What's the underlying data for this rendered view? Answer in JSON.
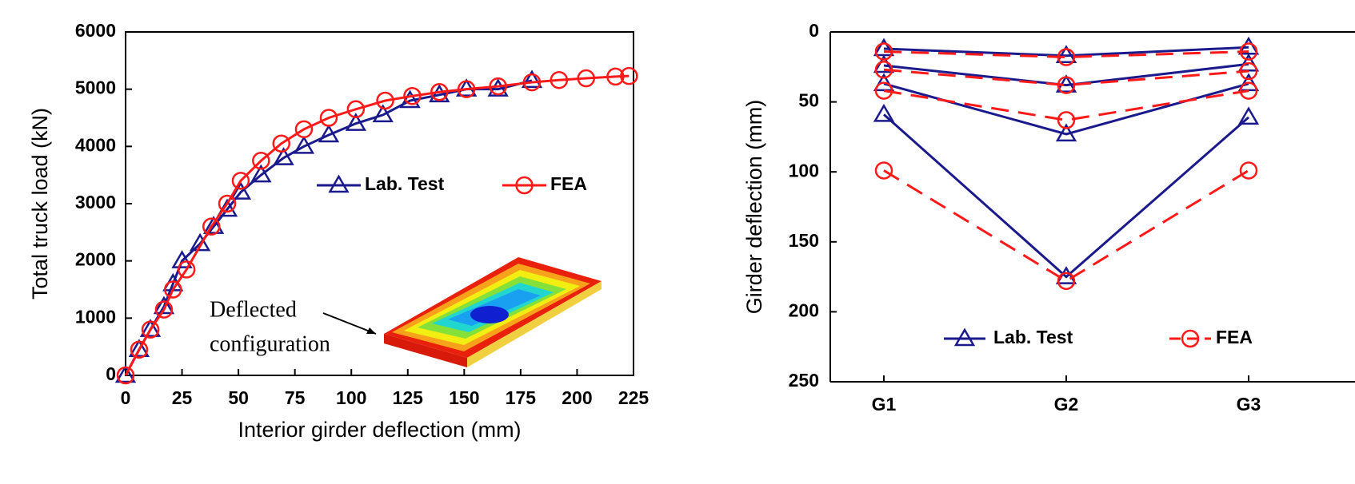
{
  "chart_data": [
    {
      "type": "line",
      "xlabel": "Interior girder deflection (mm)",
      "ylabel": "Total truck load (kN)",
      "xlim": [
        0,
        225
      ],
      "xticks": [
        0,
        25,
        50,
        75,
        100,
        125,
        150,
        175,
        200,
        225
      ],
      "ylim": [
        0,
        6000
      ],
      "yticks": [
        0,
        1000,
        2000,
        3000,
        4000,
        5000,
        6000
      ],
      "annotation": [
        "Deflected",
        "configuration"
      ],
      "series": [
        {
          "name": "Lab. Test",
          "color": "#1a1a8c",
          "marker": "triangle",
          "dashed": false,
          "x": [
            0,
            6,
            11,
            17,
            21,
            25,
            33,
            39,
            45,
            51,
            60,
            70,
            79,
            90,
            102,
            114,
            126,
            139,
            151,
            165,
            180
          ],
          "y": [
            0,
            450,
            800,
            1200,
            1600,
            2000,
            2300,
            2600,
            2900,
            3200,
            3500,
            3800,
            4000,
            4200,
            4400,
            4550,
            4800,
            4900,
            5000,
            5000,
            5150
          ]
        },
        {
          "name": "FEA",
          "color": "#ff1a1a",
          "marker": "circle",
          "dashed": false,
          "x": [
            0,
            6,
            11,
            17,
            21,
            27,
            38,
            45,
            51,
            60,
            69,
            79,
            90,
            102,
            115,
            127,
            139,
            151,
            165,
            180,
            192,
            204,
            217,
            223
          ],
          "y": [
            0,
            450,
            800,
            1150,
            1500,
            1850,
            2600,
            3000,
            3400,
            3750,
            4050,
            4300,
            4500,
            4650,
            4800,
            4880,
            4950,
            5000,
            5050,
            5120,
            5160,
            5190,
            5220,
            5230
          ]
        }
      ]
    },
    {
      "type": "line",
      "ylabel": "Girder deflection (mm)",
      "categories": [
        "G1",
        "G2",
        "G3"
      ],
      "ylim": [
        0,
        250
      ],
      "y_inverted": true,
      "yticks": [
        0,
        50,
        100,
        150,
        200,
        250
      ],
      "series": [
        {
          "name": "Lab. Test",
          "color": "#1a1a8c",
          "marker": "triangle",
          "dashed": false,
          "lines": [
            [
              12,
              17,
              11
            ],
            [
              24,
              38,
              23
            ],
            [
              37,
              73,
              37
            ],
            [
              59,
              175,
              61
            ]
          ]
        },
        {
          "name": "FEA",
          "color": "#ff1a1a",
          "marker": "circle",
          "dashed": true,
          "lines": [
            [
              14,
              18,
              14
            ],
            [
              27,
              38,
              28
            ],
            [
              42,
              63,
              42
            ],
            [
              99,
              178,
              99
            ]
          ]
        }
      ]
    }
  ]
}
